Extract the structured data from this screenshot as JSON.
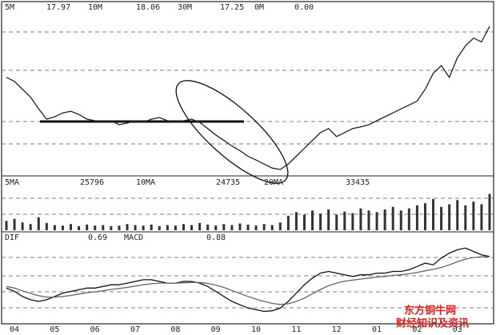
{
  "chart_data": [
    {
      "type": "line",
      "legend": [
        {
          "name": "5M",
          "value": "17.97"
        },
        {
          "name": "10M",
          "value": "18.06"
        },
        {
          "name": "30M",
          "value": "17.25"
        },
        {
          "name": "0M",
          "value": "0.00"
        }
      ],
      "color": "#222222",
      "ylim": [
        10,
        20
      ],
      "values": [
        16.06,
        15.81,
        15.32,
        14.83,
        14.09,
        13.45,
        13.6,
        13.84,
        13.94,
        13.74,
        13.45,
        13.35,
        13.25,
        13.35,
        13.1,
        13.2,
        13.35,
        13.25,
        13.45,
        13.55,
        13.35,
        13.25,
        13.35,
        13.45,
        13.25,
        12.86,
        12.46,
        12.12,
        11.77,
        11.48,
        11.13,
        10.89,
        10.64,
        10.39,
        10.3,
        10.64,
        11.13,
        11.63,
        12.12,
        12.61,
        12.86,
        12.36,
        12.61,
        12.86,
        12.96,
        13.1,
        13.35,
        13.6,
        13.84,
        14.09,
        14.33,
        14.58,
        15.32,
        16.31,
        16.8,
        16.06,
        17.29,
        18.03,
        18.52,
        18.28,
        19.26
      ]
    },
    {
      "type": "bar",
      "legend": [
        {
          "name": "5MA",
          "value": "25796"
        },
        {
          "name": "10MA",
          "value": "24735"
        },
        {
          "name": "20MA",
          "value": "33435"
        }
      ],
      "color": "#333333",
      "ylim": [
        0,
        80000
      ],
      "values": [
        18000,
        22000,
        15000,
        12000,
        25000,
        14000,
        10000,
        9000,
        12000,
        8000,
        11000,
        9000,
        10000,
        8000,
        9000,
        12000,
        10000,
        9000,
        11000,
        8000,
        10000,
        9000,
        12000,
        10000,
        14000,
        11000,
        9000,
        12000,
        10000,
        13000,
        11000,
        9000,
        12000,
        10000,
        15000,
        28000,
        35000,
        30000,
        38000,
        32000,
        40000,
        30000,
        36000,
        33000,
        42000,
        38000,
        35000,
        40000,
        45000,
        38000,
        42000,
        48000,
        52000,
        60000,
        45000,
        50000,
        58000,
        48000,
        55000,
        50000,
        70000
      ]
    },
    {
      "type": "line",
      "legend": [
        {
          "name": "DIF",
          "value": "0.69"
        },
        {
          "name": "MACD",
          "value": "0.88"
        }
      ],
      "ylim": [
        -1.2,
        1.2
      ],
      "series": [
        {
          "color": "#111111",
          "values": [
            -0.2,
            -0.3,
            -0.45,
            -0.55,
            -0.6,
            -0.55,
            -0.45,
            -0.35,
            -0.3,
            -0.25,
            -0.2,
            -0.2,
            -0.15,
            -0.1,
            -0.1,
            -0.05,
            0,
            0.05,
            0.05,
            0,
            -0.05,
            -0.05,
            0,
            0,
            -0.05,
            -0.15,
            -0.3,
            -0.45,
            -0.6,
            -0.7,
            -0.8,
            -0.85,
            -0.9,
            -0.88,
            -0.8,
            -0.6,
            -0.35,
            -0.1,
            0.1,
            0.25,
            0.3,
            0.25,
            0.2,
            0.15,
            0.2,
            0.2,
            0.25,
            0.25,
            0.3,
            0.3,
            0.35,
            0.45,
            0.55,
            0.5,
            0.7,
            0.85,
            0.95,
            1.0,
            0.9,
            0.8,
            0.75
          ]
        },
        {
          "color": "#666666",
          "values": [
            -0.15,
            -0.2,
            -0.28,
            -0.36,
            -0.43,
            -0.47,
            -0.47,
            -0.45,
            -0.42,
            -0.38,
            -0.34,
            -0.31,
            -0.28,
            -0.24,
            -0.21,
            -0.18,
            -0.14,
            -0.1,
            -0.07,
            -0.05,
            -0.05,
            -0.05,
            -0.04,
            -0.03,
            -0.03,
            -0.06,
            -0.11,
            -0.18,
            -0.27,
            -0.36,
            -0.45,
            -0.53,
            -0.6,
            -0.66,
            -0.69,
            -0.67,
            -0.6,
            -0.5,
            -0.37,
            -0.24,
            -0.13,
            -0.05,
            0.01,
            0.04,
            0.07,
            0.1,
            0.13,
            0.15,
            0.18,
            0.2,
            0.23,
            0.27,
            0.32,
            0.36,
            0.42,
            0.5,
            0.59,
            0.67,
            0.72,
            0.74,
            0.74
          ]
        }
      ]
    }
  ],
  "months": [
    "04",
    "05",
    "06",
    "07",
    "08",
    "09",
    "10",
    "11",
    "12",
    "01",
    "02",
    "03"
  ],
  "watermark": {
    "site": "东方铜牛网",
    "slogan": "财经知识及资讯"
  }
}
